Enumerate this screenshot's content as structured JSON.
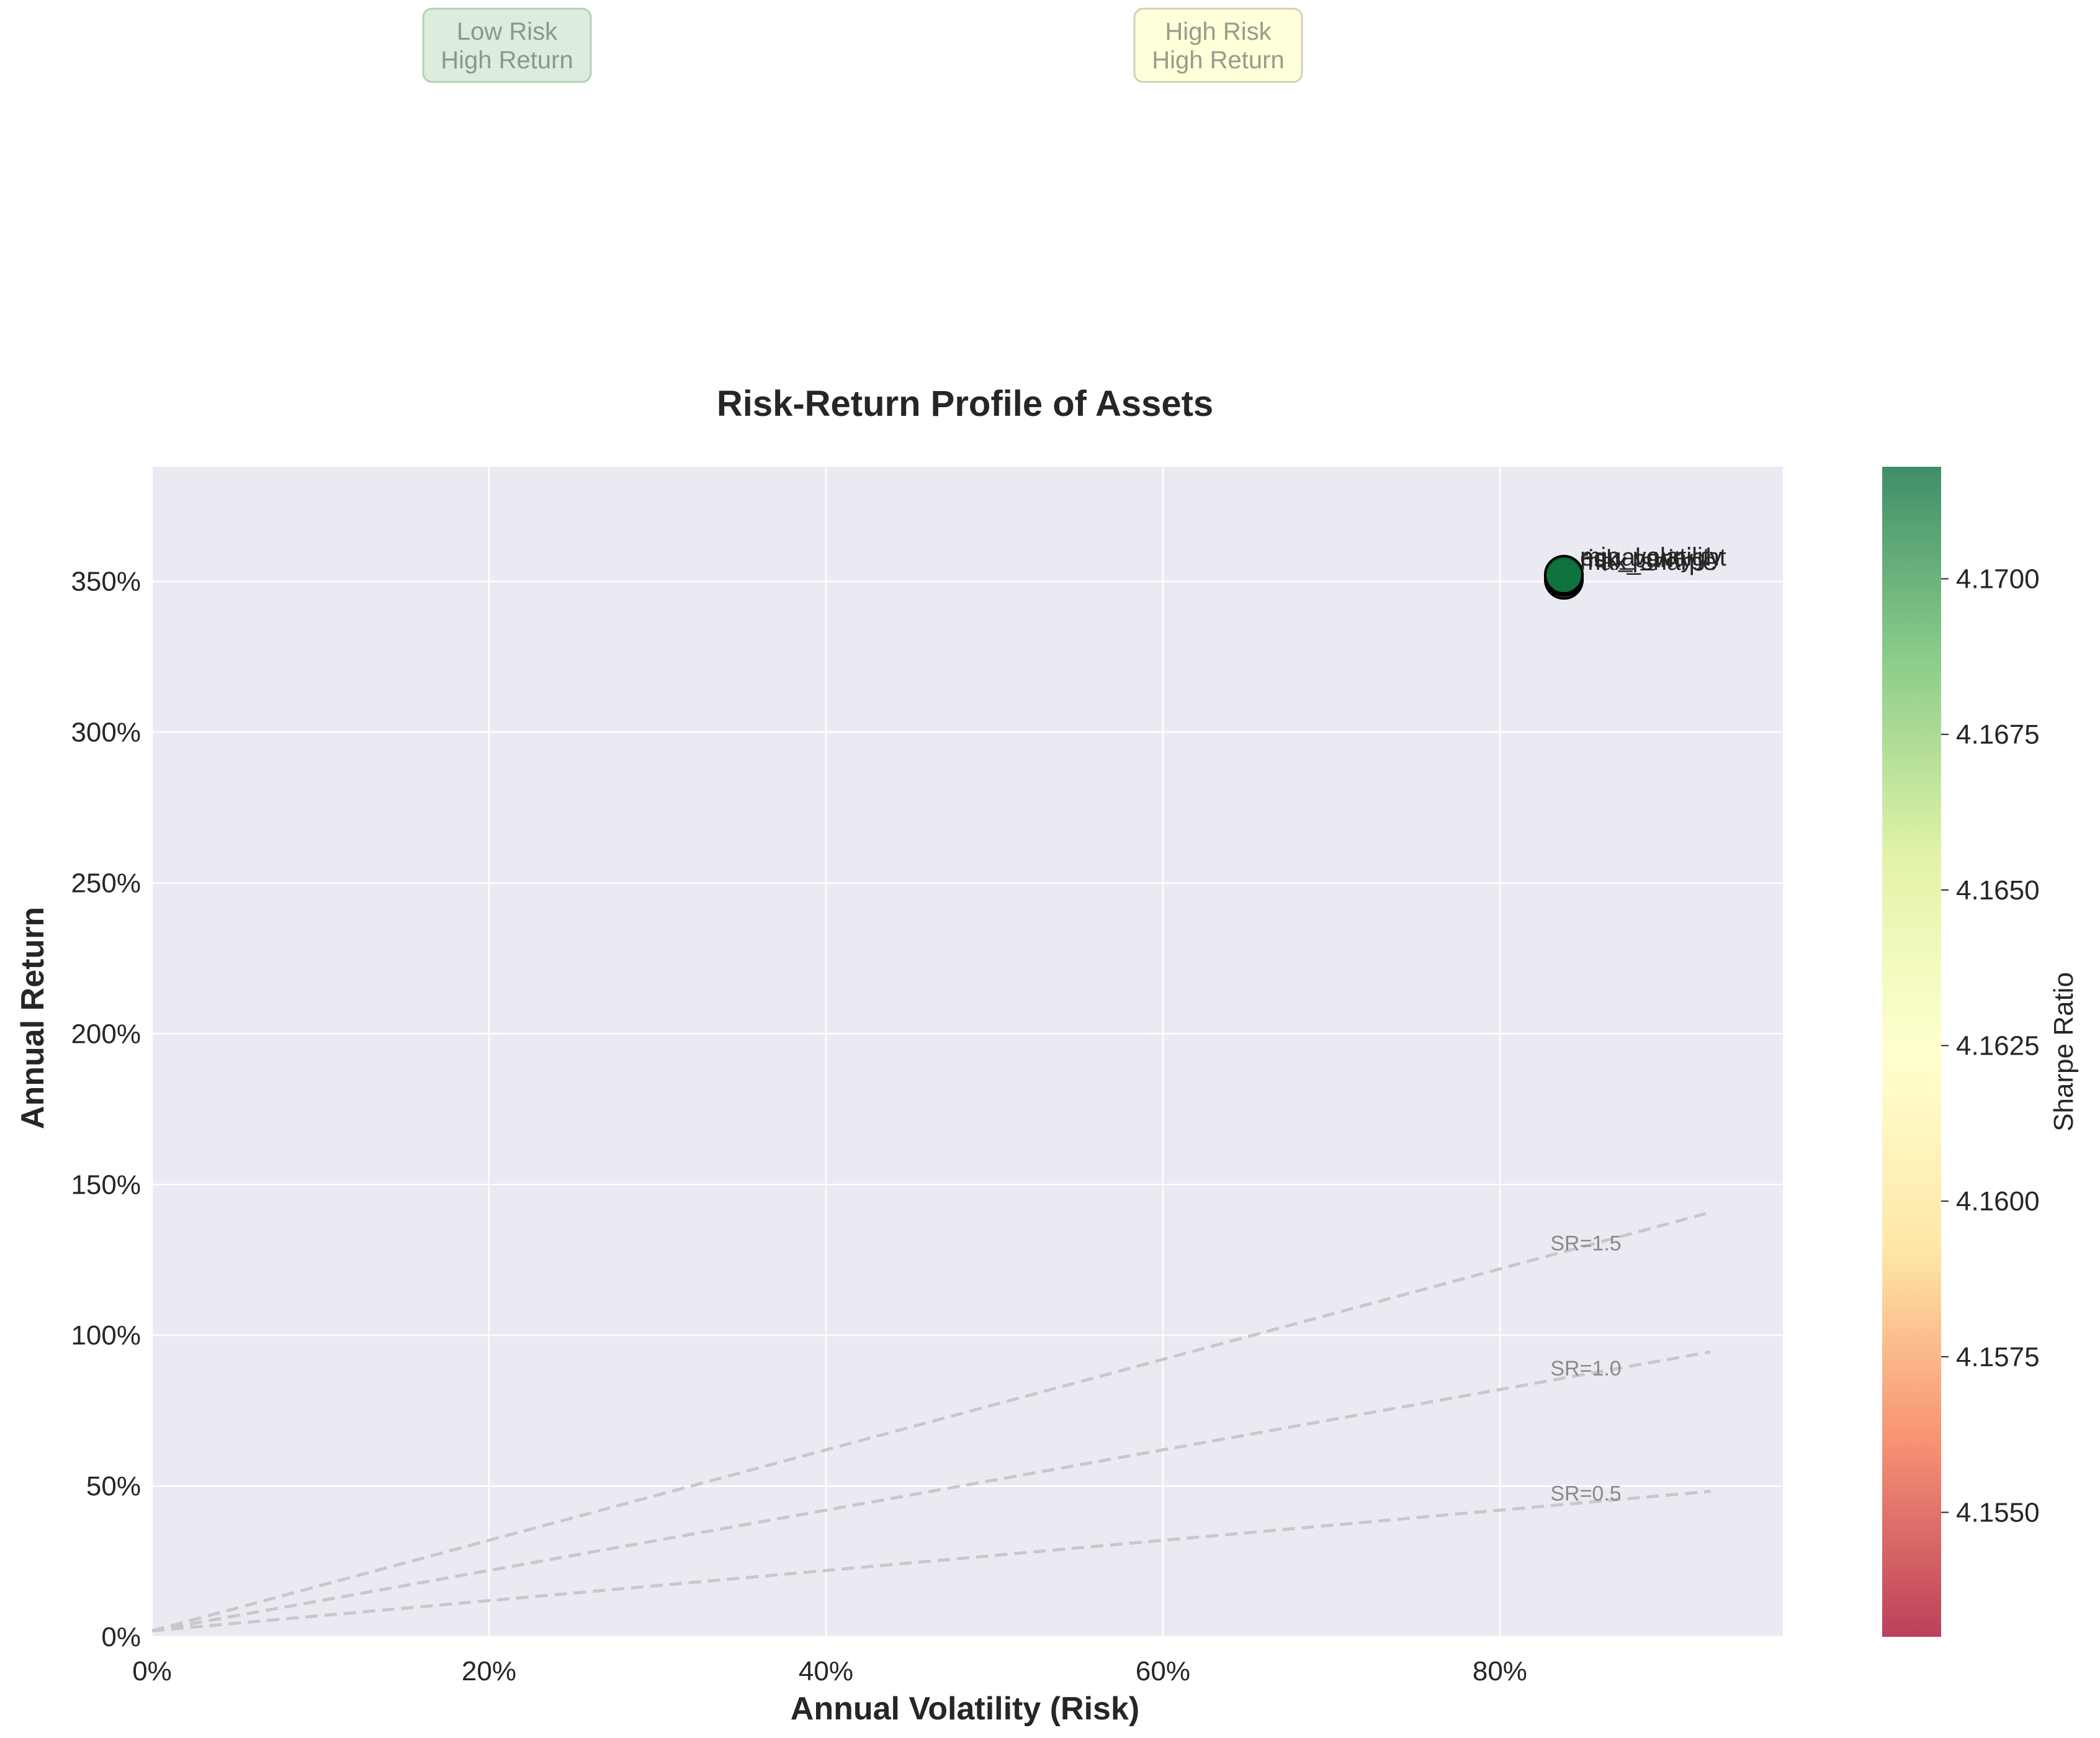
{
  "chart_data": {
    "type": "scatter",
    "title": "Risk-Return Profile of Assets",
    "xlabel": "Annual Volatility (Risk)",
    "ylabel": "Annual Return",
    "xlim": [
      0,
      0.968
    ],
    "ylim": [
      0,
      3.88
    ],
    "x_ticks": [
      0,
      0.2,
      0.4,
      0.6,
      0.8
    ],
    "x_tick_labels": [
      "0%",
      "20%",
      "40%",
      "60%",
      "80%"
    ],
    "y_ticks": [
      0,
      0.5,
      1.0,
      1.5,
      2.0,
      2.5,
      3.0,
      3.5
    ],
    "y_tick_labels": [
      "0%",
      "50%",
      "100%",
      "150%",
      "200%",
      "250%",
      "300%",
      "350%"
    ],
    "grid": true,
    "points": [
      {
        "label": "max_sharpe",
        "x": 0.838,
        "y": 3.505,
        "sharpe": 4.153
      },
      {
        "label": "risk_parity",
        "x": 0.838,
        "y": 3.515,
        "sharpe": 4.164
      },
      {
        "label": "equal_weight",
        "x": 0.838,
        "y": 3.52,
        "sharpe": 4.17
      },
      {
        "label": "min_volatility",
        "x": 0.838,
        "y": 3.522,
        "sharpe": 4.1718
      }
    ],
    "sharpe_lines": [
      {
        "label": "SR=0.5",
        "slope": 0.5
      },
      {
        "label": "SR=1.0",
        "slope": 1.0
      },
      {
        "label": "SR=1.5",
        "slope": 1.5
      }
    ],
    "sharpe_line_x_max": 0.925,
    "risk_free_rate": 0.02,
    "colorbar": {
      "label": "Sharpe Ratio",
      "min": 4.153,
      "max": 4.1718,
      "ticks": [
        4.155,
        4.1575,
        4.16,
        4.1625,
        4.165,
        4.1675,
        4.17
      ],
      "tick_labels": [
        "4.1550",
        "4.1575",
        "4.1600",
        "4.1625",
        "4.1650",
        "4.1675",
        "4.1700"
      ],
      "colormap": "RdYlGn",
      "stops": [
        "#a50026",
        "#f46d43",
        "#fee08b",
        "#ffffbf",
        "#d9ef8b",
        "#66bd63",
        "#006837"
      ]
    },
    "quadrant_labels": [
      {
        "text": [
          "Low Risk",
          "High Return"
        ],
        "fill": "#d8ead8",
        "stroke": "#a9c9a9",
        "color": "#8a9a8a"
      },
      {
        "text": [
          "High Risk",
          "High Return"
        ],
        "fill": "#ffffd4",
        "stroke": "#c9c9a9",
        "color": "#9a9a8a"
      }
    ],
    "colors": {
      "plot_bg": "#eaeaf2",
      "grid": "#ffffff",
      "sr_line": "#c8c8c8",
      "marker_edge": "#000000"
    }
  }
}
